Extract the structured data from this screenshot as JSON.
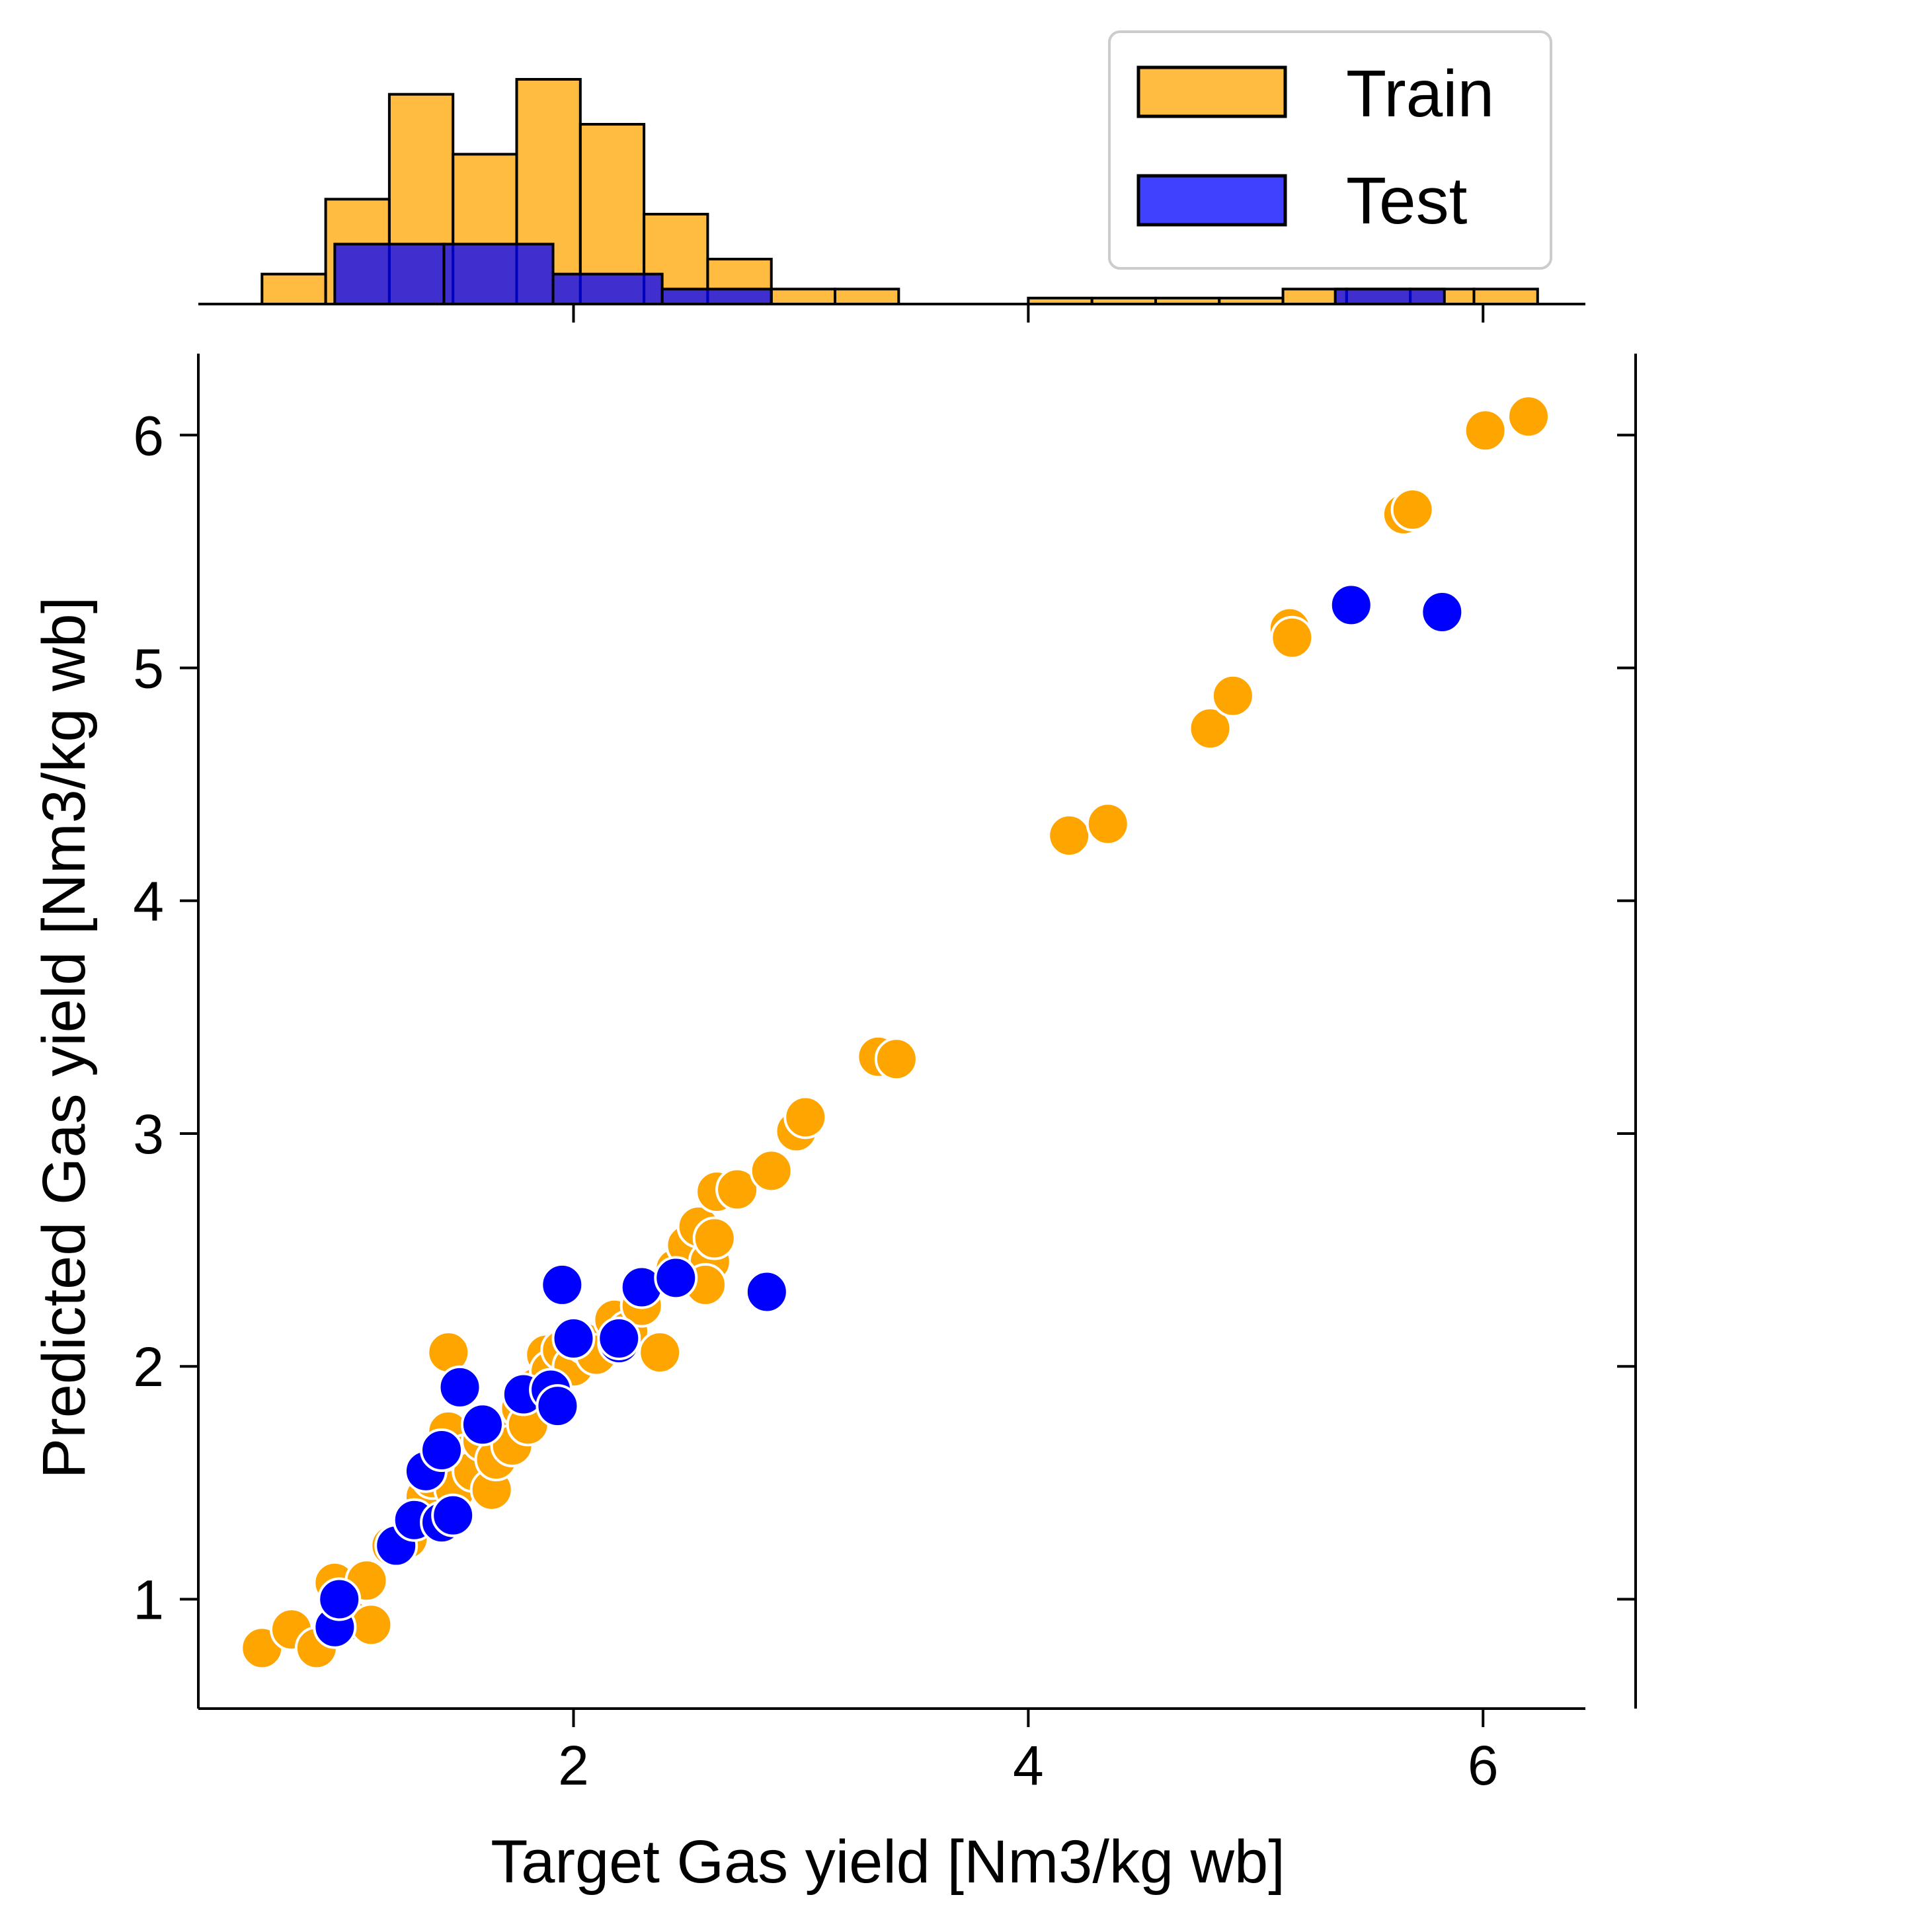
{
  "colors": {
    "train": "#FFA500",
    "test": "#0000FF",
    "hist_edge": "#000000",
    "marker_edge": "#FFFFFF"
  },
  "chart_data": {
    "type": "scatter",
    "xlabel": "Target Gas yield [Nm3/kg wb]",
    "ylabel": "Predicted Gas yield [Nm3/kg wb]",
    "xlim": [
      0.35,
      6.45
    ],
    "ylim": [
      0.53,
      6.35
    ],
    "xticks": [
      2,
      4,
      6
    ],
    "yticks": [
      1,
      2,
      3,
      4,
      5,
      6
    ],
    "grid": false,
    "legend": {
      "position": "top-right",
      "entries": [
        "Train",
        "Test"
      ]
    },
    "series": [
      {
        "name": "Train",
        "color": "#FFA500",
        "points": [
          [
            0.63,
            0.79
          ],
          [
            0.76,
            0.87
          ],
          [
            0.87,
            0.79
          ],
          [
            0.95,
            1.07
          ],
          [
            0.98,
            0.99
          ],
          [
            1.02,
            0.91
          ],
          [
            1.11,
            0.89
          ],
          [
            1.09,
            1.08
          ],
          [
            1.2,
            1.23
          ],
          [
            1.27,
            1.26
          ],
          [
            1.32,
            1.35
          ],
          [
            1.35,
            1.44
          ],
          [
            1.38,
            1.52
          ],
          [
            1.42,
            1.59
          ],
          [
            1.45,
            1.72
          ],
          [
            1.48,
            1.47
          ],
          [
            1.53,
            1.62
          ],
          [
            1.56,
            1.55
          ],
          [
            1.6,
            1.68
          ],
          [
            1.64,
            1.47
          ],
          [
            1.66,
            1.6
          ],
          [
            1.7,
            1.73
          ],
          [
            1.73,
            1.66
          ],
          [
            1.77,
            1.82
          ],
          [
            1.8,
            1.75
          ],
          [
            1.84,
            1.91
          ],
          [
            1.88,
            2.05
          ],
          [
            1.9,
            1.98
          ],
          [
            1.95,
            2.07
          ],
          [
            2.0,
            2.0
          ],
          [
            2.05,
            2.1
          ],
          [
            2.1,
            2.05
          ],
          [
            2.18,
            2.2
          ],
          [
            2.24,
            2.15
          ],
          [
            2.3,
            2.26
          ],
          [
            2.38,
            2.06
          ],
          [
            2.45,
            2.42
          ],
          [
            2.5,
            2.52
          ],
          [
            2.55,
            2.6
          ],
          [
            2.6,
            2.45
          ],
          [
            2.58,
            2.35
          ],
          [
            2.62,
            2.55
          ],
          [
            2.63,
            2.75
          ],
          [
            2.72,
            2.76
          ],
          [
            2.87,
            2.84
          ],
          [
            2.98,
            3.01
          ],
          [
            3.02,
            3.07
          ],
          [
            1.45,
            2.06
          ],
          [
            3.34,
            3.33
          ],
          [
            3.42,
            3.32
          ],
          [
            4.18,
            4.28
          ],
          [
            4.35,
            4.33
          ],
          [
            4.8,
            4.74
          ],
          [
            4.9,
            4.88
          ],
          [
            5.15,
            5.17
          ],
          [
            5.16,
            5.13
          ],
          [
            5.65,
            5.66
          ],
          [
            5.69,
            5.68
          ],
          [
            6.01,
            6.02
          ],
          [
            6.2,
            6.08
          ]
        ]
      },
      {
        "name": "Test",
        "color": "#0000FF",
        "points": [
          [
            0.95,
            0.88
          ],
          [
            0.97,
            1.0
          ],
          [
            1.22,
            1.23
          ],
          [
            1.3,
            1.34
          ],
          [
            1.35,
            1.55
          ],
          [
            1.42,
            1.33
          ],
          [
            1.47,
            1.36
          ],
          [
            1.42,
            1.64
          ],
          [
            1.5,
            1.91
          ],
          [
            1.6,
            1.75
          ],
          [
            1.78,
            1.88
          ],
          [
            1.9,
            1.9
          ],
          [
            1.93,
            1.83
          ],
          [
            1.95,
            2.35
          ],
          [
            2.0,
            2.12
          ],
          [
            2.2,
            2.1
          ],
          [
            2.2,
            2.12
          ],
          [
            2.3,
            2.34
          ],
          [
            2.45,
            2.38
          ],
          [
            2.85,
            2.32
          ],
          [
            5.42,
            5.27
          ],
          [
            5.82,
            5.24
          ]
        ]
      }
    ],
    "histogram": {
      "bin_edges": [
        0.63,
        0.91,
        1.19,
        1.47,
        1.75,
        2.03,
        2.31,
        2.59,
        2.87,
        3.15,
        3.43
      ],
      "bin_edges_high": [
        4.0,
        4.28,
        4.56,
        4.84,
        5.12,
        5.4,
        5.68,
        5.96,
        6.24
      ],
      "train_counts": [
        2,
        7,
        14,
        10,
        15,
        12,
        6,
        3,
        1,
        1
      ],
      "train_counts_high": [
        0.4,
        0.4,
        0.4,
        0.4,
        1,
        1,
        1,
        1
      ],
      "test_bin_edges": [
        0.95,
        1.43,
        1.91,
        2.39,
        2.87,
        5.35,
        5.83
      ],
      "test_counts": [
        4,
        4,
        2,
        1,
        0,
        1
      ]
    }
  }
}
